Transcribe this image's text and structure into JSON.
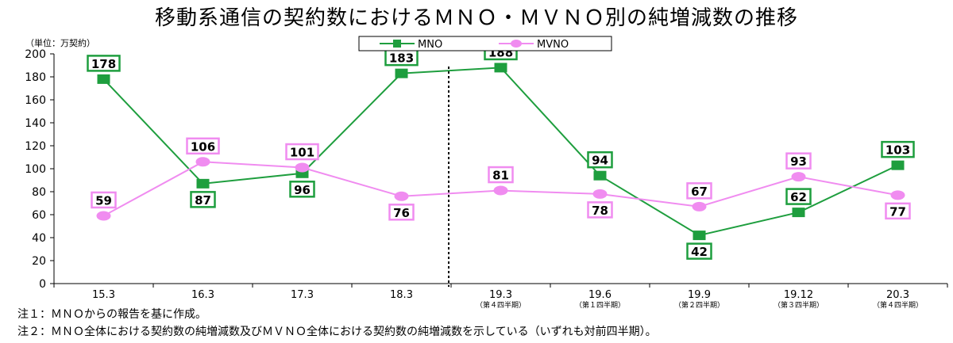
{
  "title": "移動系通信の契約数におけるＭＮＯ・ＭＶＮＯ別の純増減数の推移",
  "notes": [
    "注１：ＭＮＯからの報告を基に作成。",
    "注２：ＭＮＯ全体における契約数の純増減数及びＭＶＮＯ全体における契約数の純増減数を示している（いずれも対前四半期）。"
  ],
  "chart_data": {
    "type": "line",
    "unit_label": "（単位：万契約）",
    "categories": [
      "15.3",
      "16.3",
      "17.3",
      "18.3",
      "19.3",
      "19.6",
      "19.9",
      "19.12",
      "20.3"
    ],
    "sublabels": [
      "",
      "",
      "",
      "",
      "（第４四半期）",
      "（第１四半期）",
      "（第２四半期）",
      "（第３四半期）",
      "（第４四半期）"
    ],
    "series": [
      {
        "name": "MNO",
        "values": [
          178,
          87,
          96,
          183,
          188,
          94,
          42,
          62,
          103
        ],
        "color": "#1e9e3e",
        "marker": "square"
      },
      {
        "name": "MVNO",
        "values": [
          59,
          106,
          101,
          76,
          81,
          78,
          67,
          93,
          77
        ],
        "color": "#f08cf0",
        "marker": "circle"
      }
    ],
    "ylim": [
      0,
      200
    ],
    "yticks": [
      0,
      20,
      40,
      60,
      80,
      100,
      120,
      140,
      160,
      180,
      200
    ],
    "grid": false,
    "legend": "top-center",
    "divider_after_category": "18.3",
    "label_positions": {
      "MNO": [
        "above",
        "below",
        "below",
        "above",
        "above",
        "above",
        "below",
        "above",
        "above"
      ],
      "MVNO": [
        "above",
        "above",
        "above",
        "below",
        "above",
        "below",
        "above",
        "above",
        "below"
      ]
    }
  }
}
